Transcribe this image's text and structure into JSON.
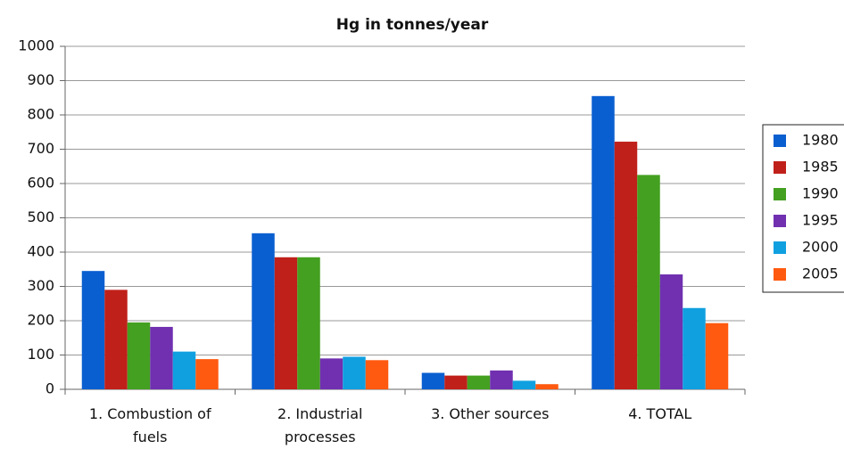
{
  "chart_data": {
    "type": "bar",
    "title": "Hg in tonnes/year",
    "categories": [
      "1. Combustion of fuels",
      "2. Industrial processes",
      "3. Other sources",
      "4. TOTAL"
    ],
    "series": [
      {
        "name": "1980",
        "color": "#0a5fd0",
        "values": [
          345,
          455,
          48,
          855
        ]
      },
      {
        "name": "1985",
        "color": "#c0201a",
        "values": [
          290,
          385,
          40,
          722
        ]
      },
      {
        "name": "1990",
        "color": "#44a020",
        "values": [
          195,
          385,
          40,
          625
        ]
      },
      {
        "name": "1995",
        "color": "#7030b0",
        "values": [
          182,
          90,
          55,
          335
        ]
      },
      {
        "name": "2000",
        "color": "#10a0e0",
        "values": [
          110,
          95,
          25,
          237
        ]
      },
      {
        "name": "2005",
        "color": "#ff5a10",
        "values": [
          88,
          85,
          15,
          193
        ]
      }
    ],
    "ylim": [
      0,
      1000
    ],
    "yticks": [
      0,
      100,
      200,
      300,
      400,
      500,
      600,
      700,
      800,
      900,
      1000
    ],
    "grid": true,
    "legend": "right"
  }
}
